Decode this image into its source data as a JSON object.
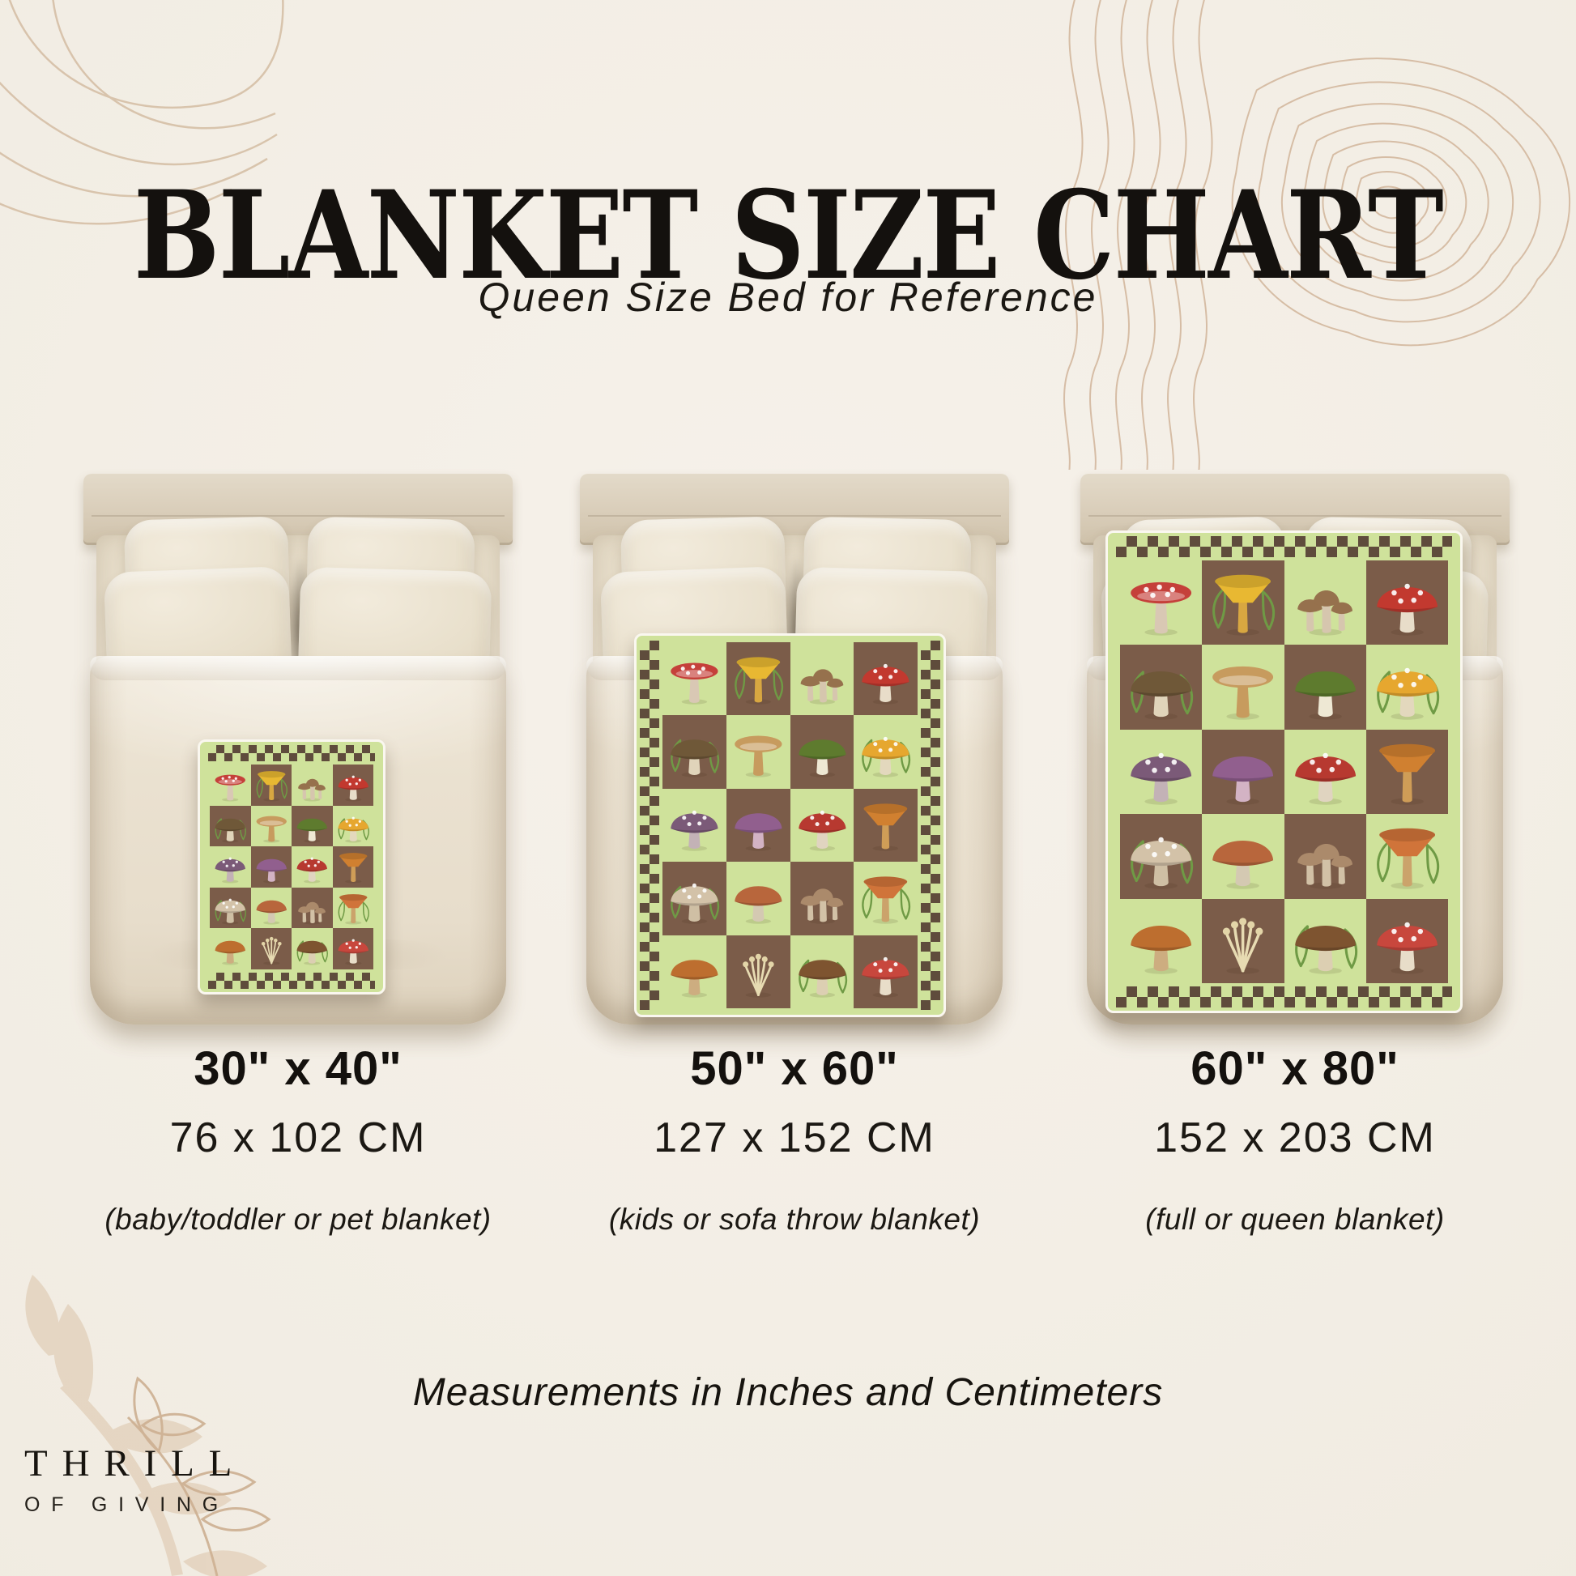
{
  "page": {
    "title": "BLANKET SIZE CHART",
    "subtitle": "Queen Size Bed for Reference",
    "footnote": "Measurements in Inches and Centimeters"
  },
  "brand": {
    "line1": "THRILL",
    "line2": "OF GIVING"
  },
  "sizes": [
    {
      "inches": "30\" x 40\"",
      "cm": "76 x 102 CM",
      "use": "(baby/toddler or pet blanket)"
    },
    {
      "inches": "50\" x 60\"",
      "cm": "127 x 152 CM",
      "use": "(kids or sofa throw blanket)"
    },
    {
      "inches": "60\" x 80\"",
      "cm": "152 x 203 CM",
      "use": "(full or queen blanket)"
    }
  ],
  "colors": {
    "background": "#f1ece2",
    "accent_line": "#d0b69a",
    "text": "#161310",
    "blanket_green": "#cfe29b",
    "blanket_brown": "#7b5c49",
    "check_brown": "#5f4c3c",
    "headboard": "#d8cdb9",
    "pillow": "#e9dfcc",
    "duvet": "#ebe3d2"
  },
  "blanket_pattern": {
    "columns": 4,
    "rows": 5,
    "cells": [
      {
        "bg": "green",
        "shape": "flat",
        "cap": "#c5403a",
        "stem": "#d9c8b4",
        "spots": true,
        "fern": false,
        "motif": "fly agaric top view"
      },
      {
        "bg": "brown",
        "shape": "funnel",
        "cap": "#e8b832",
        "stem": "#d8a741",
        "spots": false,
        "fern": true,
        "motif": "chanterelles with fern"
      },
      {
        "bg": "green",
        "shape": "cluster",
        "cap": "#96714d",
        "stem": "#d6c6ae",
        "spots": false,
        "fern": false,
        "motif": "forest mushroom cluster"
      },
      {
        "bg": "brown",
        "shape": "dome",
        "cap": "#c2392f",
        "stem": "#e8ddc9",
        "spots": true,
        "fern": false,
        "motif": "fly agaric pair"
      },
      {
        "bg": "brown",
        "shape": "dome",
        "cap": "#6f5838",
        "stem": "#e0d4ba",
        "spots": false,
        "fern": true,
        "motif": "morels with fern"
      },
      {
        "bg": "green",
        "shape": "flat",
        "cap": "#c79b5e",
        "stem": "#c79b5e",
        "spots": false,
        "fern": false,
        "motif": "tan funnel mushrooms"
      },
      {
        "bg": "brown",
        "shape": "dome",
        "cap": "#5e7b2e",
        "stem": "#eee8d4",
        "spots": false,
        "fern": false,
        "motif": "green russula"
      },
      {
        "bg": "green",
        "shape": "dome",
        "cap": "#e6a72f",
        "stem": "#e3d8bd",
        "spots": true,
        "fern": true,
        "motif": "yellow bolete scene"
      },
      {
        "bg": "green",
        "shape": "dome",
        "cap": "#7b5a78",
        "stem": "#c3b2b6",
        "spots": true,
        "fern": false,
        "motif": "purple parasol"
      },
      {
        "bg": "brown",
        "shape": "dome",
        "cap": "#915f8e",
        "stem": "#d3b3c4",
        "spots": false,
        "fern": false,
        "motif": "purple blewit"
      },
      {
        "bg": "green",
        "shape": "dome",
        "cap": "#b73930",
        "stem": "#e0d4c0",
        "spots": true,
        "fern": false,
        "motif": "fly agaric with baby"
      },
      {
        "bg": "brown",
        "shape": "funnel",
        "cap": "#d08030",
        "stem": "#cf9d57",
        "spots": false,
        "fern": false,
        "motif": "orange chanterelles"
      },
      {
        "bg": "brown",
        "shape": "dome",
        "cap": "#d3c2a8",
        "stem": "#cfbfa4",
        "spots": true,
        "fern": true,
        "motif": "parasol mushrooms with fern"
      },
      {
        "bg": "green",
        "shape": "dome",
        "cap": "#b8663c",
        "stem": "#d4c9b2",
        "spots": false,
        "fern": false,
        "motif": "bolete pair"
      },
      {
        "bg": "brown",
        "shape": "cluster",
        "cap": "#ab8a6b",
        "stem": "#d2c1a6",
        "spots": false,
        "fern": false,
        "motif": "honey fungus cluster"
      },
      {
        "bg": "green",
        "shape": "funnel",
        "cap": "#d0743a",
        "stem": "#cba36b",
        "spots": false,
        "fern": true,
        "motif": "orange milk cap with fern"
      },
      {
        "bg": "green",
        "shape": "dome",
        "cap": "#bd6e2f",
        "stem": "#cdad80",
        "spots": false,
        "fern": false,
        "motif": "orange bolete"
      },
      {
        "bg": "brown",
        "shape": "enoki",
        "cap": "#e3d5a8",
        "stem": "#e7dbb2",
        "spots": false,
        "fern": false,
        "motif": "enoki bundle"
      },
      {
        "bg": "green",
        "shape": "dome",
        "cap": "#7e5430",
        "stem": "#dccfb2",
        "spots": false,
        "fern": true,
        "motif": "porcini with greens"
      },
      {
        "bg": "brown",
        "shape": "dome",
        "cap": "#c8473d",
        "stem": "#e8ddc9",
        "spots": true,
        "fern": false,
        "motif": "red russula"
      }
    ]
  }
}
